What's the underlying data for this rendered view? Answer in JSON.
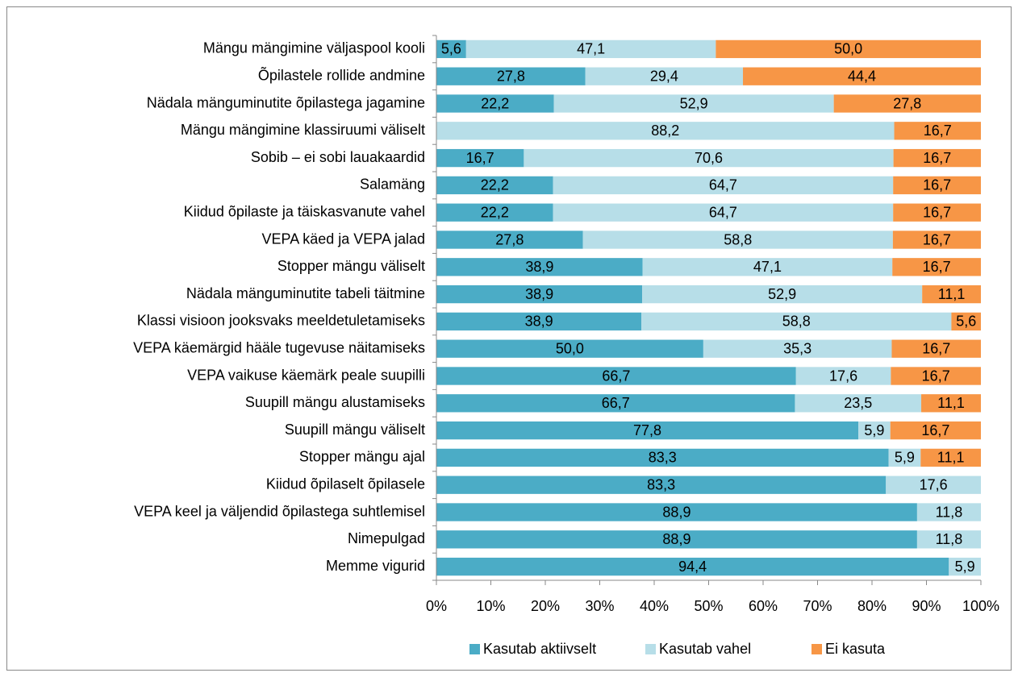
{
  "chart_data": {
    "type": "bar",
    "orientation": "horizontal",
    "stacking": "percent",
    "categories": [
      "Mängu mängimine väljaspool kooli",
      "Õpilastele rollide andmine",
      "Nädala mänguminutite õpilastega jagamine",
      "Mängu mängimine klassiruumi väliselt",
      "Sobib – ei sobi lauakaardid",
      "Salamäng",
      "Kiidud õpilaste ja täiskasvanute vahel",
      "VEPA käed ja VEPA jalad",
      "Stopper mängu väliselt",
      "Nädala mänguminutite tabeli täitmine",
      "Klassi visioon jooksvaks meeldetuletamiseks",
      "VEPA käemärgid hääle tugevuse näitamiseks",
      "VEPA vaikuse käemärk peale suupilli",
      "Suupill mängu alustamiseks",
      "Suupill mängu väliselt",
      "Stopper mängu ajal",
      "Kiidud õpilaselt õpilasele",
      "VEPA keel ja väljendid õpilastega suhtlemisel",
      "Nimepulgad",
      "Memme vigurid"
    ],
    "series": [
      {
        "name": "Kasutab aktiivselt",
        "color": "#4bacc6",
        "values": [
          5.6,
          27.8,
          22.2,
          null,
          16.7,
          22.2,
          22.2,
          27.8,
          38.9,
          38.9,
          38.9,
          50.0,
          66.7,
          66.7,
          77.8,
          83.3,
          83.3,
          88.9,
          88.9,
          94.4
        ],
        "value_labels": [
          "5,6",
          "27,8",
          "22,2",
          null,
          "16,7",
          "22,2",
          "22,2",
          "27,8",
          "38,9",
          "38,9",
          "38,9",
          "50,0",
          "66,7",
          "66,7",
          "77,8",
          "83,3",
          "83,3",
          "88,9",
          "88,9",
          "94,4"
        ]
      },
      {
        "name": "Kasutab vahel",
        "color": "#b7dee8",
        "values": [
          47.1,
          29.4,
          52.9,
          88.2,
          70.6,
          64.7,
          64.7,
          58.8,
          47.1,
          52.9,
          58.8,
          35.3,
          17.6,
          23.5,
          5.9,
          5.9,
          17.6,
          11.8,
          11.8,
          5.9
        ],
        "value_labels": [
          "47,1",
          "29,4",
          "52,9",
          "88,2",
          "70,6",
          "64,7",
          "64,7",
          "58,8",
          "47,1",
          "52,9",
          "58,8",
          "35,3",
          "17,6",
          "23,5",
          "5,9",
          "5,9",
          "17,6",
          "11,8",
          "11,8",
          "5,9"
        ]
      },
      {
        "name": "Ei kasuta",
        "color": "#f79646",
        "values": [
          50.0,
          44.4,
          27.8,
          16.7,
          16.7,
          16.7,
          16.7,
          16.7,
          16.7,
          11.1,
          5.6,
          16.7,
          16.7,
          11.1,
          16.7,
          11.1,
          null,
          null,
          null,
          null
        ],
        "value_labels": [
          "50,0",
          "44,4",
          "27,8",
          "16,7",
          "16,7",
          "16,7",
          "16,7",
          "16,7",
          "16,7",
          "11,1",
          "5,6",
          "16,7",
          "16,7",
          "11,1",
          "16,7",
          "11,1",
          null,
          null,
          null,
          null
        ]
      }
    ],
    "xlim": [
      0,
      100
    ],
    "xticks": [
      {
        "value": 0,
        "label": "0%"
      },
      {
        "value": 10,
        "label": "10%"
      },
      {
        "value": 20,
        "label": "20%"
      },
      {
        "value": 30,
        "label": "30%"
      },
      {
        "value": 40,
        "label": "40%"
      },
      {
        "value": 50,
        "label": "50%"
      },
      {
        "value": 60,
        "label": "60%"
      },
      {
        "value": 70,
        "label": "70%"
      },
      {
        "value": 80,
        "label": "80%"
      },
      {
        "value": 90,
        "label": "90%"
      },
      {
        "value": 100,
        "label": "100%"
      }
    ],
    "legend": "bottom"
  }
}
